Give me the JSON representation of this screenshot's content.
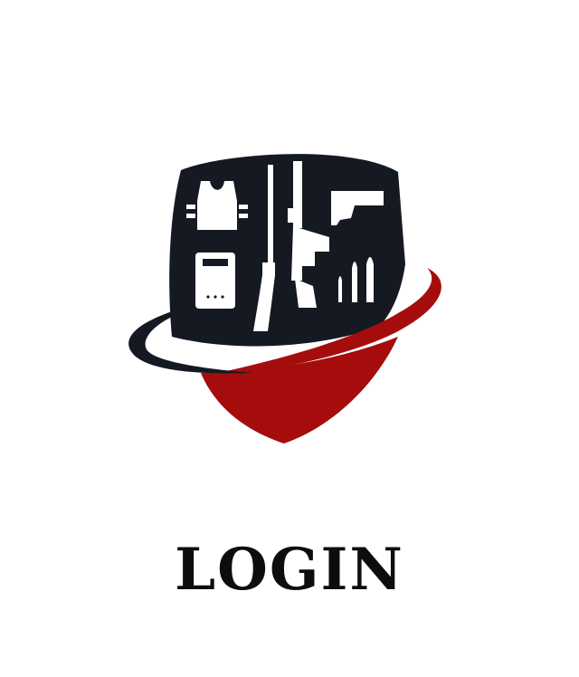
{
  "logo": {
    "icon": "tactical-gear-shield-logo",
    "colors": {
      "shield": "#151a22",
      "accent": "#a50d0d",
      "gear": "#ffffff"
    }
  },
  "login": {
    "label": "LOGIN"
  }
}
